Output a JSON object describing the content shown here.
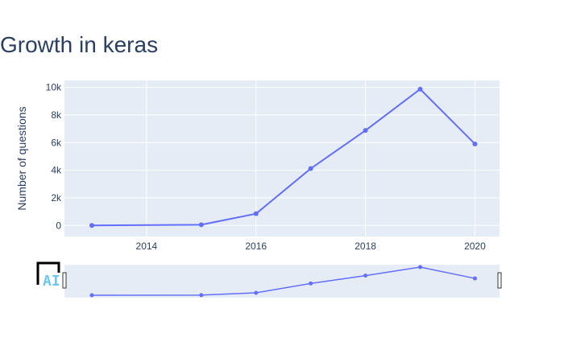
{
  "chart_data": {
    "type": "line",
    "title": "Growth in keras",
    "xlabel": "",
    "ylabel": "Number of questions",
    "x": [
      2013,
      2015,
      2016,
      2017,
      2018,
      2019,
      2020
    ],
    "series": [
      {
        "values": [
          0,
          50,
          850,
          4120,
          6880,
          9870,
          5900
        ]
      }
    ],
    "xlim": [
      2012.5,
      2020.45
    ],
    "ylim": [
      -800,
      10500
    ],
    "x_ticks": [
      2014,
      2016,
      2018,
      2020
    ],
    "x_tick_labels": [
      "2014",
      "2016",
      "2018",
      "2020"
    ],
    "y_ticks": [
      0,
      2000,
      4000,
      6000,
      8000,
      10000
    ],
    "y_tick_labels": [
      "0",
      "2k",
      "4k",
      "6k",
      "8k",
      "10k"
    ],
    "grid": true,
    "range_slider": true,
    "colors": {
      "line": "#636efa",
      "plot_bg": "#e5ecf6",
      "grid": "#ffffff",
      "text": "#2a3f5f"
    }
  },
  "logo": {
    "text": "AI",
    "name": "ai-logo"
  }
}
